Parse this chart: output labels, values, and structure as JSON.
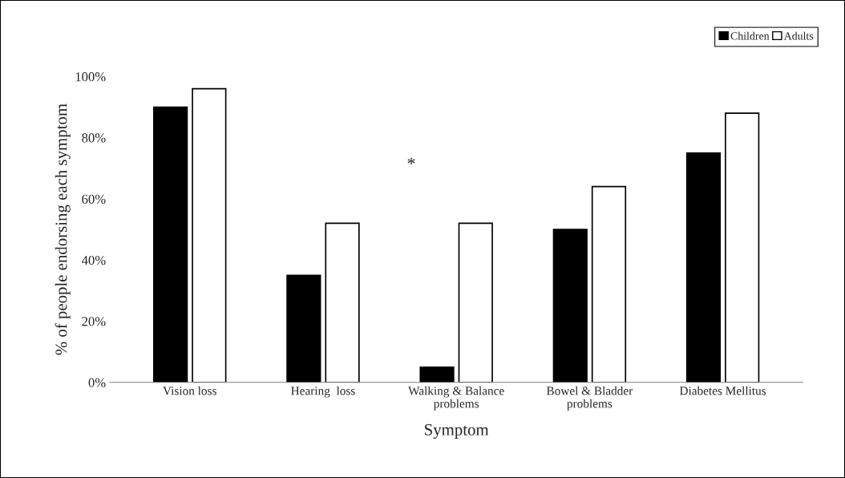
{
  "chart_data": {
    "type": "bar",
    "xlabel": "Symptom",
    "ylabel": "% of people endorsing each symptom",
    "categories": [
      "Vision loss",
      "Hearing  loss",
      "Walking & Balance\nproblems",
      "Bowel & Bladder\nproblems",
      "Diabetes Mellitus"
    ],
    "series": [
      {
        "name": "Children",
        "color": "#000000",
        "values": [
          90,
          35,
          5,
          50,
          75
        ]
      },
      {
        "name": "Adults",
        "color": "#ffffff",
        "values": [
          96,
          52,
          52,
          64,
          88
        ]
      }
    ],
    "ylim": [
      0,
      100
    ],
    "yticks": [
      {
        "value": 0,
        "label": "0%"
      },
      {
        "value": 20,
        "label": "20%"
      },
      {
        "value": 40,
        "label": "40%"
      },
      {
        "value": 60,
        "label": "60%"
      },
      {
        "value": 80,
        "label": "80%"
      },
      {
        "value": 100,
        "label": "100%"
      }
    ],
    "annotations": [
      "*"
    ],
    "grid": false,
    "legend": "top right"
  }
}
